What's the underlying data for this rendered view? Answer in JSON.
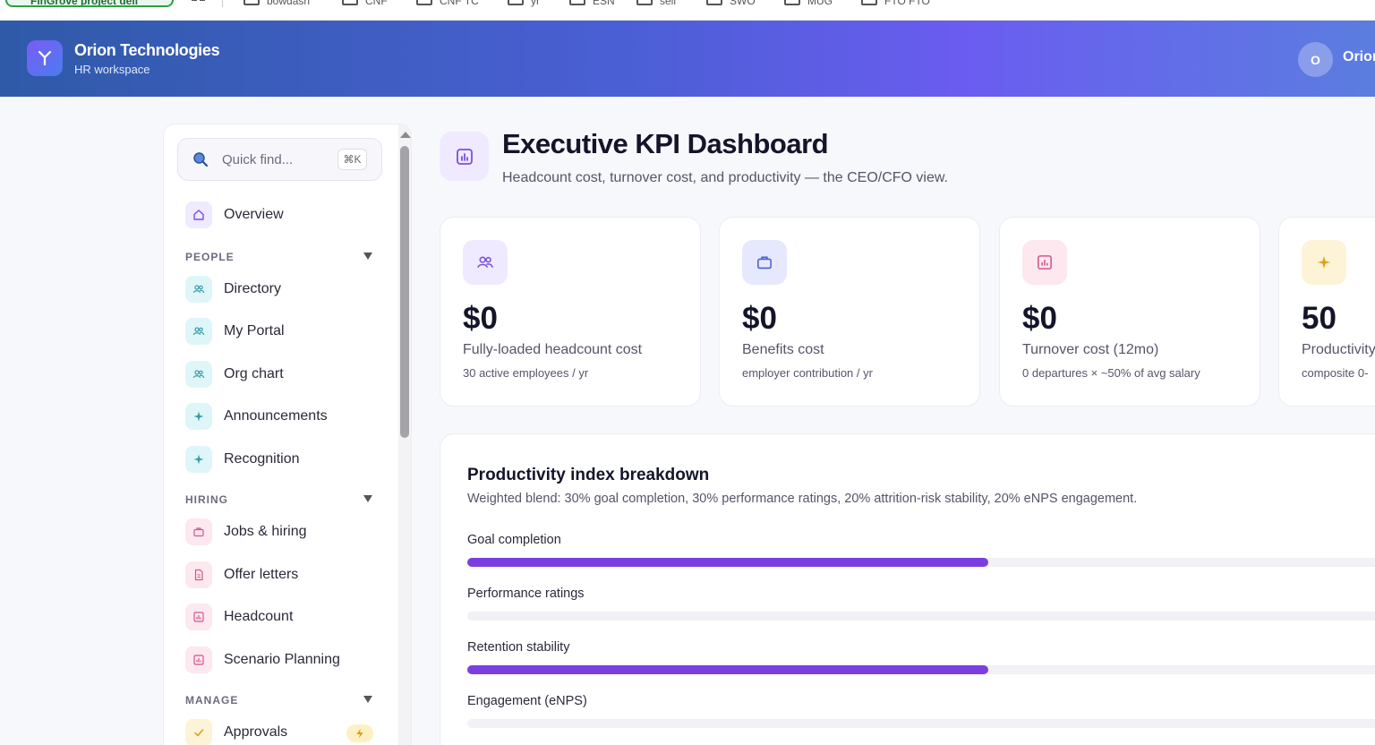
{
  "browser": {
    "project_bookmark": "FinGrove project dell",
    "folders": [
      "bowdash",
      "CNF",
      "CNF TC",
      "yr",
      "ESN",
      "sell",
      "SWO",
      "MUG",
      "FTO FTO"
    ]
  },
  "header": {
    "brand_name": "Orion Technologies",
    "brand_sub": "HR workspace",
    "user_initial": "O",
    "user_name": "Orion"
  },
  "sidebar": {
    "search_placeholder": "Quick find...",
    "shortcut": "⌘K",
    "overview": "Overview",
    "sections": {
      "people": "PEOPLE",
      "hiring": "HIRING",
      "manage": "MANAGE"
    },
    "items": {
      "directory": "Directory",
      "my_portal": "My Portal",
      "org_chart": "Org chart",
      "announcements": "Announcements",
      "recognition": "Recognition",
      "jobs_hiring": "Jobs & hiring",
      "offer_letters": "Offer letters",
      "headcount": "Headcount",
      "scenario_planning": "Scenario Planning",
      "approvals": "Approvals"
    }
  },
  "main": {
    "title": "Executive KPI Dashboard",
    "subtitle": "Headcount cost, turnover cost, and productivity — the CEO/CFO view.",
    "kpis": [
      {
        "value": "$0",
        "label": "Fully-loaded headcount cost",
        "note": "30 active employees / yr"
      },
      {
        "value": "$0",
        "label": "Benefits cost",
        "note": "employer contribution / yr"
      },
      {
        "value": "$0",
        "label": "Turnover cost (12mo)",
        "note": "0 departures × ~50% of avg salary"
      },
      {
        "value": "50",
        "label": "Productivity",
        "note": "composite 0-"
      }
    ],
    "breakdown": {
      "title": "Productivity index breakdown",
      "subtitle": "Weighted blend: 30% goal completion, 30% performance ratings, 20% attrition-risk stability, 20% eNPS engagement.",
      "metrics": [
        {
          "label": "Goal completion",
          "level": 0.56
        },
        {
          "label": "Performance ratings",
          "level": 0
        },
        {
          "label": "Retention stability",
          "level": 0.56
        },
        {
          "label": "Engagement (eNPS)",
          "level": 0
        }
      ]
    }
  },
  "colors": {
    "accent": "#7b3fe0",
    "header_start": "#2f5aa8",
    "header_end": "#6a5cf0"
  }
}
